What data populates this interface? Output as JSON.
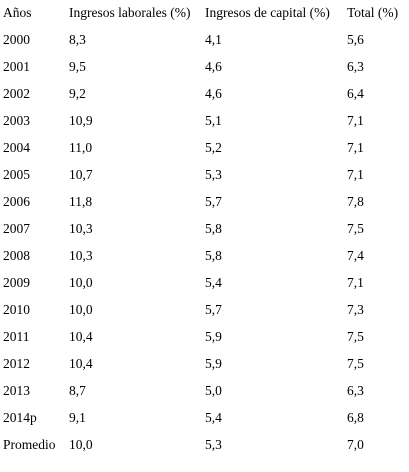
{
  "table": {
    "headers": [
      "Años",
      "Ingresos laborales (%)",
      "Ingresos de capital (%)",
      "Total (%)"
    ],
    "rows": [
      [
        "2000",
        "8,3",
        "4,1",
        "5,6"
      ],
      [
        "2001",
        "9,5",
        "4,6",
        "6,3"
      ],
      [
        "2002",
        "9,2",
        "4,6",
        "6,4"
      ],
      [
        "2003",
        "10,9",
        "5,1",
        "7,1"
      ],
      [
        "2004",
        "11,0",
        "5,2",
        "7,1"
      ],
      [
        "2005",
        "10,7",
        "5,3",
        "7,1"
      ],
      [
        "2006",
        "11,8",
        "5,7",
        "7,8"
      ],
      [
        "2007",
        "10,3",
        "5,8",
        "7,5"
      ],
      [
        "2008",
        "10,3",
        "5,8",
        "7,4"
      ],
      [
        "2009",
        "10,0",
        "5,4",
        "7,1"
      ],
      [
        "2010",
        "10,0",
        "5,7",
        "7,3"
      ],
      [
        "2011",
        "10,4",
        "5,9",
        "7,5"
      ],
      [
        "2012",
        "10,4",
        "5,9",
        "7,5"
      ],
      [
        "2013",
        "8,7",
        "5,0",
        "6,3"
      ],
      [
        "2014p",
        "9,1",
        "5,4",
        "6,8"
      ],
      [
        "Promedio",
        "10,0",
        "5,3",
        "7,0"
      ]
    ]
  }
}
